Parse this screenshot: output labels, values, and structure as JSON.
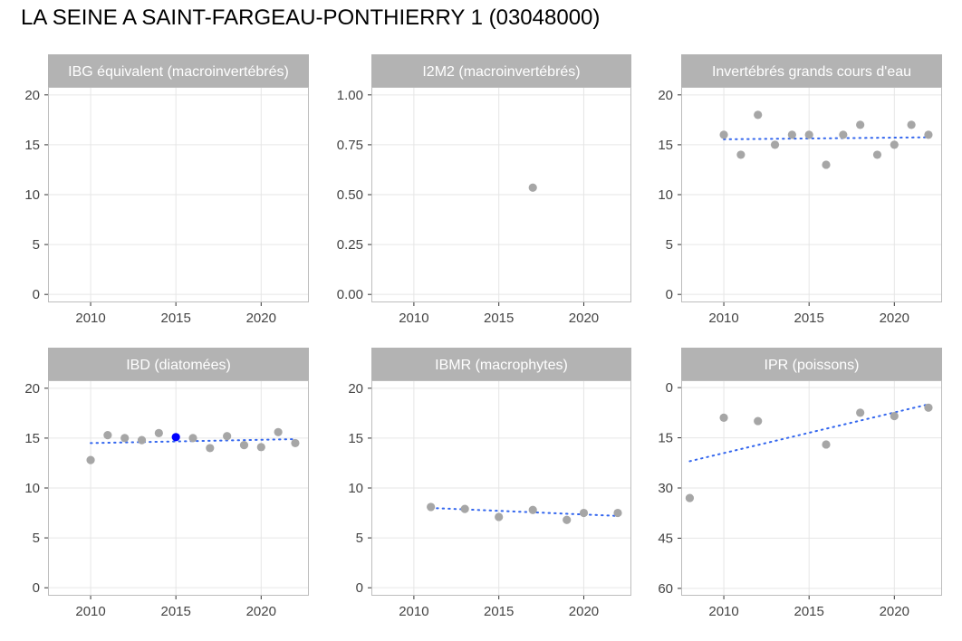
{
  "title": "LA SEINE A SAINT-FARGEAU-PONTHIERRY 1 (03048000)",
  "colors": {
    "point": "#a6a6a6",
    "highlight_point": "#0000ff",
    "trend": "#3366ee",
    "strip_bg": "#b3b3b3",
    "strip_text": "#ffffff",
    "grid": "#e6e6e6",
    "panel_border": "#bdbdbd"
  },
  "chart_data": [
    {
      "type": "scatter",
      "title": "IBG équivalent (macroinvertébrés)",
      "x_ticks": [
        2010,
        2015,
        2020
      ],
      "xlim": [
        2007.5,
        2022.8
      ],
      "y_ticks": [
        0,
        5,
        10,
        15,
        20
      ],
      "y_tick_labels": [
        "0",
        "5",
        "10",
        "15",
        "20"
      ],
      "ylim": [
        -0.8,
        20.8
      ],
      "y_reversed": false,
      "points": [],
      "trend": null
    },
    {
      "type": "scatter",
      "title": "I2M2 (macroinvertébrés)",
      "x_ticks": [
        2010,
        2015,
        2020
      ],
      "xlim": [
        2007.5,
        2022.8
      ],
      "y_ticks": [
        0,
        0.25,
        0.5,
        0.75,
        1.0
      ],
      "y_tick_labels": [
        "0.00",
        "0.25",
        "0.50",
        "0.75",
        "1.00"
      ],
      "ylim": [
        -0.04,
        1.04
      ],
      "y_reversed": false,
      "points": [
        {
          "x": 2017,
          "y": 0.535
        }
      ],
      "trend": null
    },
    {
      "type": "scatter",
      "title": "Invertébrés grands cours d'eau",
      "x_ticks": [
        2010,
        2015,
        2020
      ],
      "xlim": [
        2007.5,
        2022.8
      ],
      "y_ticks": [
        0,
        5,
        10,
        15,
        20
      ],
      "y_tick_labels": [
        "0",
        "5",
        "10",
        "15",
        "20"
      ],
      "ylim": [
        -0.8,
        20.8
      ],
      "y_reversed": false,
      "points": [
        {
          "x": 2010,
          "y": 16
        },
        {
          "x": 2011,
          "y": 14
        },
        {
          "x": 2012,
          "y": 18
        },
        {
          "x": 2013,
          "y": 15
        },
        {
          "x": 2014,
          "y": 16
        },
        {
          "x": 2015,
          "y": 16
        },
        {
          "x": 2016,
          "y": 13
        },
        {
          "x": 2017,
          "y": 16
        },
        {
          "x": 2018,
          "y": 17
        },
        {
          "x": 2019,
          "y": 14
        },
        {
          "x": 2020,
          "y": 15
        },
        {
          "x": 2021,
          "y": 17
        },
        {
          "x": 2022,
          "y": 16
        }
      ],
      "trend": {
        "x": [
          2010,
          2022
        ],
        "y": [
          15.55,
          15.75
        ]
      }
    },
    {
      "type": "scatter",
      "title": "IBD (diatomées)",
      "x_ticks": [
        2010,
        2015,
        2020
      ],
      "xlim": [
        2007.5,
        2022.8
      ],
      "y_ticks": [
        0,
        5,
        10,
        15,
        20
      ],
      "y_tick_labels": [
        "0",
        "5",
        "10",
        "15",
        "20"
      ],
      "ylim": [
        -0.8,
        20.8
      ],
      "y_reversed": false,
      "points": [
        {
          "x": 2010,
          "y": 12.8
        },
        {
          "x": 2011,
          "y": 15.3
        },
        {
          "x": 2012,
          "y": 15.0
        },
        {
          "x": 2013,
          "y": 14.8
        },
        {
          "x": 2014,
          "y": 15.5
        },
        {
          "x": 2015,
          "y": 15.1,
          "highlight": true
        },
        {
          "x": 2016,
          "y": 15.0
        },
        {
          "x": 2017,
          "y": 14.0
        },
        {
          "x": 2018,
          "y": 15.2
        },
        {
          "x": 2019,
          "y": 14.3
        },
        {
          "x": 2020,
          "y": 14.1
        },
        {
          "x": 2021,
          "y": 15.6
        },
        {
          "x": 2022,
          "y": 14.5
        }
      ],
      "trend": {
        "x": [
          2010,
          2022
        ],
        "y": [
          14.5,
          14.9
        ]
      }
    },
    {
      "type": "scatter",
      "title": "IBMR (macrophytes)",
      "x_ticks": [
        2010,
        2015,
        2020
      ],
      "xlim": [
        2007.5,
        2022.8
      ],
      "y_ticks": [
        0,
        5,
        10,
        15,
        20
      ],
      "y_tick_labels": [
        "0",
        "5",
        "10",
        "15",
        "20"
      ],
      "ylim": [
        -0.8,
        20.8
      ],
      "y_reversed": false,
      "points": [
        {
          "x": 2011,
          "y": 8.1
        },
        {
          "x": 2013,
          "y": 7.9
        },
        {
          "x": 2015,
          "y": 7.1
        },
        {
          "x": 2017,
          "y": 7.8
        },
        {
          "x": 2019,
          "y": 6.8
        },
        {
          "x": 2020,
          "y": 7.5
        },
        {
          "x": 2022,
          "y": 7.5
        }
      ],
      "trend": {
        "x": [
          2011,
          2022
        ],
        "y": [
          8.0,
          7.2
        ]
      }
    },
    {
      "type": "scatter",
      "title": "IPR (poissons)",
      "x_ticks": [
        2010,
        2015,
        2020
      ],
      "xlim": [
        2007.5,
        2022.8
      ],
      "y_ticks": [
        0,
        15,
        30,
        45,
        60
      ],
      "y_tick_labels": [
        "0",
        "15",
        "30",
        "45",
        "60"
      ],
      "ylim": [
        62.2,
        -2.2
      ],
      "y_reversed": true,
      "points": [
        {
          "x": 2008,
          "y": 33
        },
        {
          "x": 2010,
          "y": 9
        },
        {
          "x": 2012,
          "y": 10
        },
        {
          "x": 2016,
          "y": 17
        },
        {
          "x": 2018,
          "y": 7.5
        },
        {
          "x": 2020,
          "y": 8.5
        },
        {
          "x": 2022,
          "y": 6
        }
      ],
      "trend": {
        "x": [
          2008,
          2022
        ],
        "y": [
          22,
          5
        ]
      }
    }
  ]
}
